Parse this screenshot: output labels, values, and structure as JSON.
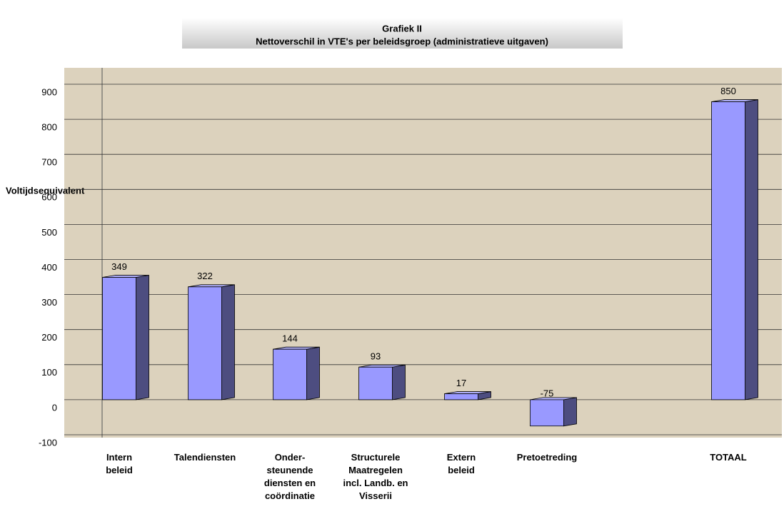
{
  "chart_data": {
    "type": "bar",
    "title": [
      "Grafiek II",
      "Nettoverschil in VTE's per beleidsgroep (administratieve uitgaven)"
    ],
    "y_axis_label": "Voltijdsequivalent",
    "categories": [
      "Intern\nbeleid",
      "Talendiensten",
      "Onder-\nsteunende\ndiensten en\ncoördinatie",
      "Structurele\nMaatregelen\nincl. Landb. en\nVisserii",
      "Extern\nbeleid",
      "Pretoetreding",
      "TOTAAL"
    ],
    "values": [
      349,
      322,
      144,
      93,
      17,
      -75,
      850
    ],
    "color": "#9999ff",
    "side_color": "#4d4d80",
    "ylim": [
      -100,
      900
    ],
    "yticks": [
      -100,
      0,
      100,
      200,
      300,
      400,
      500,
      600,
      700,
      800,
      900
    ],
    "grid": true
  }
}
